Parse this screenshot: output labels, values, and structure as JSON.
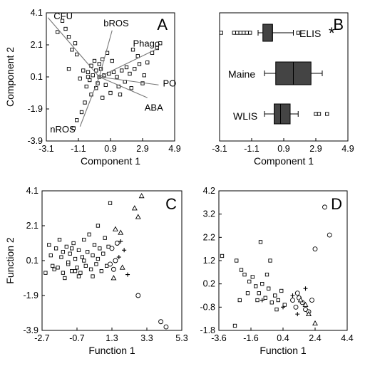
{
  "chart_data": [
    {
      "panel": "A",
      "type": "scatter",
      "xlabel": "Component 1",
      "ylabel": "Component 2",
      "xlim": [
        -3.1,
        4.9
      ],
      "ylim": [
        -3.9,
        4.1
      ],
      "x_ticks": [
        "-3.1",
        "-1.1",
        "0.9",
        "2.9",
        "4.9"
      ],
      "y_ticks": [
        "4.1",
        "2.1",
        "0.1",
        "-1.9",
        "-3.9"
      ],
      "vectors": [
        {
          "label": "CFU",
          "x": -3.0,
          "y": 3.8
        },
        {
          "label": "bROS",
          "x": 1.0,
          "y": 3.0
        },
        {
          "label": "Phago",
          "x": 3.9,
          "y": 1.9
        },
        {
          "label": "PO",
          "x": 3.9,
          "y": -0.4
        },
        {
          "label": "ABA",
          "x": 3.2,
          "y": -1.2
        },
        {
          "label": "nROS",
          "x": -1.0,
          "y": -3.0
        }
      ],
      "points": [
        [
          -2.1,
          3.6
        ],
        [
          -1.9,
          3.1
        ],
        [
          -2.4,
          2.9
        ],
        [
          -1.7,
          2.6
        ],
        [
          -1.3,
          2.2
        ],
        [
          -1.5,
          1.8
        ],
        [
          -1.2,
          1.5
        ],
        [
          -1.7,
          0.6
        ],
        [
          -0.8,
          0.5
        ],
        [
          -0.5,
          0.4
        ],
        [
          -0.3,
          0.8
        ],
        [
          -0.2,
          0.2
        ],
        [
          0.0,
          0.5
        ],
        [
          0.2,
          0.1
        ],
        [
          0.3,
          0.6
        ],
        [
          0.5,
          0.2
        ],
        [
          0.1,
          -0.3
        ],
        [
          -0.4,
          -0.1
        ],
        [
          -0.6,
          -0.5
        ],
        [
          0.6,
          -0.4
        ],
        [
          0.8,
          0.3
        ],
        [
          1.1,
          0.4
        ],
        [
          1.3,
          0.1
        ],
        [
          1.6,
          0.5
        ],
        [
          1.9,
          0.7
        ],
        [
          2.1,
          0.3
        ],
        [
          2.4,
          0.6
        ],
        [
          2.7,
          0.9
        ],
        [
          3.0,
          0.2
        ],
        [
          3.2,
          1.0
        ],
        [
          2.6,
          1.4
        ],
        [
          3.5,
          1.6
        ],
        [
          3.8,
          1.9
        ],
        [
          4.0,
          2.2
        ],
        [
          0.4,
          1.2
        ],
        [
          0.7,
          1.6
        ],
        [
          -0.1,
          1.1
        ],
        [
          0.9,
          -0.9
        ],
        [
          0.4,
          -1.2
        ],
        [
          -0.3,
          -1.0
        ],
        [
          -0.7,
          -1.5
        ],
        [
          -0.9,
          -2.1
        ],
        [
          -1.2,
          -2.6
        ],
        [
          -1.4,
          -3.1
        ],
        [
          1.4,
          -0.5
        ],
        [
          1.8,
          -0.2
        ],
        [
          2.2,
          -0.6
        ],
        [
          0.0,
          -0.6
        ],
        [
          -1.0,
          0.0
        ],
        [
          1.0,
          1.1
        ],
        [
          1.5,
          -1.0
        ],
        [
          0.2,
          0.9
        ],
        [
          -0.5,
          0.1
        ],
        [
          2.9,
          -0.3
        ],
        [
          2.3,
          1.8
        ]
      ]
    },
    {
      "panel": "B",
      "type": "box",
      "xlabel": "Component 1",
      "xlim": [
        -3.1,
        4.9
      ],
      "x_ticks": [
        "-3.1",
        "-1.1",
        "0.9",
        "2.9",
        "4.9"
      ],
      "annotation": "*",
      "groups": [
        {
          "name": "ELIS",
          "whisker_low": -0.7,
          "q1": -0.4,
          "median": 0.2,
          "q3": 0.2,
          "whisker_high": 1.5,
          "outliers": [
            -3.0,
            -2.2,
            -2.0,
            -1.8,
            -1.6,
            -1.4,
            -1.2,
            1.8
          ]
        },
        {
          "name": "Maine",
          "whisker_low": -0.3,
          "q1": 0.4,
          "median": 1.5,
          "q3": 2.6,
          "whisker_high": 3.3,
          "outliers": []
        },
        {
          "name": "WLIS",
          "whisker_low": -0.3,
          "q1": 0.3,
          "median": 0.7,
          "q3": 1.3,
          "whisker_high": 1.8,
          "outliers": [
            2.9,
            3.1,
            3.6
          ]
        }
      ]
    },
    {
      "panel": "C",
      "type": "scatter",
      "xlabel": "Function 1",
      "ylabel": "Function 2",
      "xlim": [
        -2.7,
        5.3
      ],
      "ylim": [
        -3.9,
        4.1
      ],
      "x_ticks": [
        "-2.7",
        "-0.7",
        "1.3",
        "3.3",
        "5.3"
      ],
      "y_ticks": [
        "4.1",
        "2.1",
        "0.1",
        "-1.9",
        "-3.9"
      ],
      "series": [
        {
          "marker": "square",
          "points": [
            [
              1.2,
              3.4
            ],
            [
              -2.5,
              -0.6
            ],
            [
              -2.2,
              0.4
            ],
            [
              -2.1,
              -0.2
            ],
            [
              -1.9,
              0.8
            ],
            [
              -1.8,
              -0.3
            ],
            [
              -1.6,
              0.3
            ],
            [
              -1.5,
              -0.6
            ],
            [
              -1.3,
              0.9
            ],
            [
              -1.2,
              -0.1
            ],
            [
              -1.1,
              0.5
            ],
            [
              -1.0,
              -0.5
            ],
            [
              -0.9,
              1.1
            ],
            [
              -0.8,
              0.2
            ],
            [
              -0.7,
              -0.3
            ],
            [
              -0.6,
              0.7
            ],
            [
              -0.5,
              -0.6
            ],
            [
              -0.4,
              0.3
            ],
            [
              -0.3,
              1.3
            ],
            [
              -0.2,
              -0.2
            ],
            [
              -0.1,
              0.6
            ],
            [
              0.0,
              1.6
            ],
            [
              0.1,
              -0.4
            ],
            [
              0.2,
              0.4
            ],
            [
              0.3,
              1.0
            ],
            [
              0.4,
              -0.1
            ],
            [
              0.5,
              2.1
            ],
            [
              0.6,
              0.8
            ],
            [
              0.7,
              -0.5
            ],
            [
              0.8,
              0.5
            ],
            [
              0.9,
              1.4
            ],
            [
              1.0,
              -0.2
            ],
            [
              1.1,
              0.9
            ],
            [
              -2.3,
              1.0
            ],
            [
              -1.7,
              1.3
            ],
            [
              -1.4,
              -0.9
            ],
            [
              -0.6,
              -0.8
            ],
            [
              0.2,
              -0.8
            ],
            [
              -2.0,
              -0.4
            ],
            [
              -1.2,
              0.0
            ],
            [
              -0.3,
              0.1
            ],
            [
              0.5,
              0.2
            ],
            [
              -1.0,
              0.8
            ],
            [
              -0.8,
              -0.5
            ],
            [
              -1.5,
              0.6
            ]
          ]
        },
        {
          "marker": "circle",
          "points": [
            [
              1.3,
              0.8
            ],
            [
              1.5,
              0.1
            ],
            [
              1.4,
              -0.4
            ],
            [
              1.6,
              1.1
            ],
            [
              1.2,
              -0.1
            ],
            [
              2.8,
              -1.9
            ],
            [
              4.1,
              -3.4
            ],
            [
              4.4,
              -3.7
            ]
          ]
        },
        {
          "marker": "triangle",
          "points": [
            [
              3.0,
              3.8
            ],
            [
              2.8,
              2.6
            ],
            [
              2.6,
              3.1
            ],
            [
              1.8,
              1.7
            ],
            [
              1.5,
              1.9
            ],
            [
              1.4,
              -0.9
            ],
            [
              1.9,
              -0.3
            ]
          ]
        },
        {
          "marker": "cross",
          "points": [
            [
              2.0,
              0.7
            ],
            [
              1.7,
              0.3
            ],
            [
              2.2,
              -0.7
            ],
            [
              1.8,
              1.2
            ]
          ]
        }
      ]
    },
    {
      "panel": "D",
      "type": "scatter",
      "xlabel": "Function 1",
      "xlim": [
        -3.6,
        4.4
      ],
      "ylim": [
        -1.8,
        4.2
      ],
      "x_ticks": [
        "-3.6",
        "-1.6",
        "0.4",
        "2.4",
        "4.4"
      ],
      "y_ticks": [
        "4.2",
        "3.2",
        "2.2",
        "1.2",
        "0.2",
        "-0.8",
        "-1.8"
      ],
      "series": [
        {
          "marker": "square",
          "points": [
            [
              -3.4,
              1.4
            ],
            [
              -2.5,
              1.2
            ],
            [
              -2.2,
              0.8
            ],
            [
              -2.0,
              0.6
            ],
            [
              -1.7,
              0.3
            ],
            [
              -1.5,
              0.5
            ],
            [
              -1.3,
              0.1
            ],
            [
              -1.1,
              -0.2
            ],
            [
              -0.9,
              0.2
            ],
            [
              -0.7,
              -0.4
            ],
            [
              -0.5,
              0.0
            ],
            [
              -0.3,
              -0.6
            ],
            [
              -0.1,
              -0.3
            ],
            [
              0.1,
              -0.5
            ],
            [
              0.3,
              -0.1
            ],
            [
              0.5,
              -0.7
            ],
            [
              -0.6,
              0.6
            ],
            [
              -1.2,
              -0.5
            ],
            [
              -1.8,
              -0.2
            ],
            [
              -2.3,
              -0.5
            ],
            [
              0.0,
              -0.9
            ],
            [
              -0.4,
              1.2
            ],
            [
              -1.0,
              2.0
            ],
            [
              -2.6,
              -1.6
            ]
          ]
        },
        {
          "marker": "circle",
          "points": [
            [
              3.0,
              3.5
            ],
            [
              3.3,
              2.3
            ],
            [
              2.4,
              1.7
            ],
            [
              1.4,
              -0.4
            ],
            [
              1.6,
              -0.6
            ],
            [
              1.2,
              -0.8
            ],
            [
              1.8,
              -0.9
            ],
            [
              2.0,
              -1.0
            ],
            [
              1.0,
              -0.5
            ],
            [
              1.3,
              -0.2
            ],
            [
              2.2,
              -0.5
            ]
          ]
        },
        {
          "marker": "triangle",
          "points": [
            [
              2.4,
              -1.5
            ],
            [
              2.0,
              -1.1
            ],
            [
              1.8,
              -0.7
            ],
            [
              1.5,
              -0.5
            ]
          ]
        },
        {
          "marker": "cross",
          "points": [
            [
              1.8,
              0.0
            ],
            [
              0.4,
              -0.8
            ],
            [
              -0.9,
              -0.5
            ],
            [
              1.0,
              -0.3
            ],
            [
              1.3,
              -1.1
            ]
          ]
        }
      ]
    }
  ]
}
